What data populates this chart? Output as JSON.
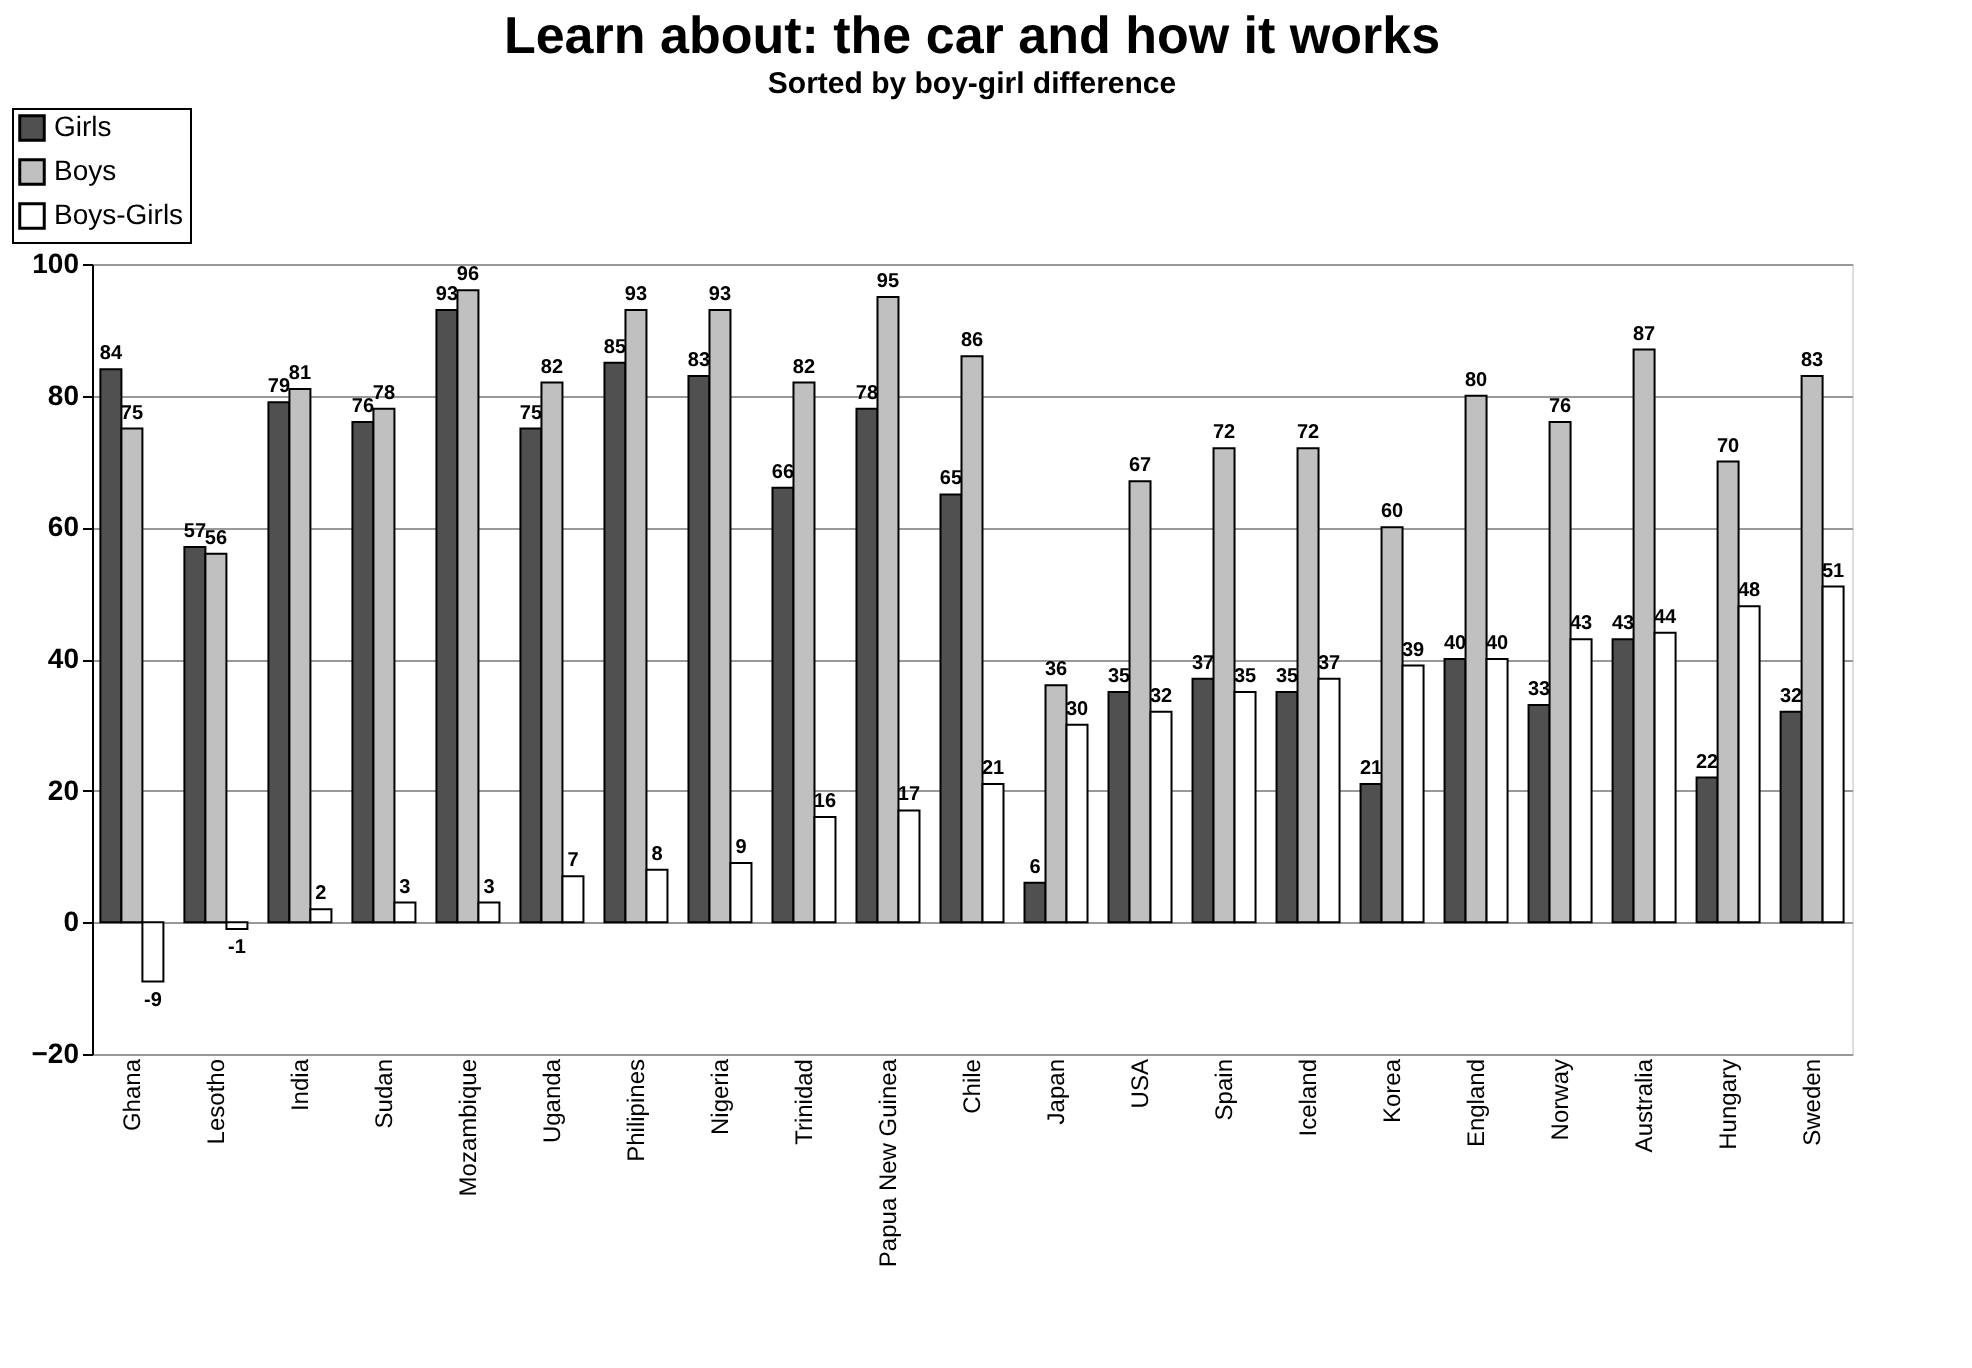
{
  "chart_data": {
    "type": "bar",
    "title": "Learn about: the car and how it works",
    "subtitle": "Sorted by boy-girl difference",
    "categories": [
      "Ghana",
      "Lesotho",
      "India",
      "Sudan",
      "Mozambique",
      "Uganda",
      "Philipines",
      "Nigeria",
      "Trinidad",
      "Papua New Guinea",
      "Chile",
      "Japan",
      "USA",
      "Spain",
      "Iceland",
      "Korea",
      "England",
      "Norway",
      "Australia",
      "Hungary",
      "Sweden"
    ],
    "series": [
      {
        "name": "Girls",
        "color": "#505050",
        "values": [
          84,
          57,
          79,
          76,
          93,
          75,
          85,
          83,
          66,
          78,
          65,
          6,
          35,
          37,
          35,
          21,
          40,
          33,
          43,
          22,
          32
        ]
      },
      {
        "name": "Boys",
        "color": "#c0c0c0",
        "values": [
          75,
          56,
          81,
          78,
          96,
          82,
          93,
          93,
          82,
          95,
          86,
          36,
          67,
          72,
          72,
          60,
          80,
          76,
          87,
          70,
          83
        ]
      },
      {
        "name": "Boys-Girls",
        "color": "#ffffff",
        "values": [
          -9,
          -1,
          2,
          3,
          3,
          7,
          8,
          9,
          16,
          17,
          21,
          30,
          32,
          35,
          37,
          39,
          40,
          43,
          44,
          48,
          51
        ]
      }
    ],
    "ylim": [
      -20,
      100
    ],
    "yticks": [
      -20,
      0,
      20,
      40,
      60,
      80,
      100
    ],
    "grid": "y",
    "legend": "top left",
    "data_labels": true
  }
}
